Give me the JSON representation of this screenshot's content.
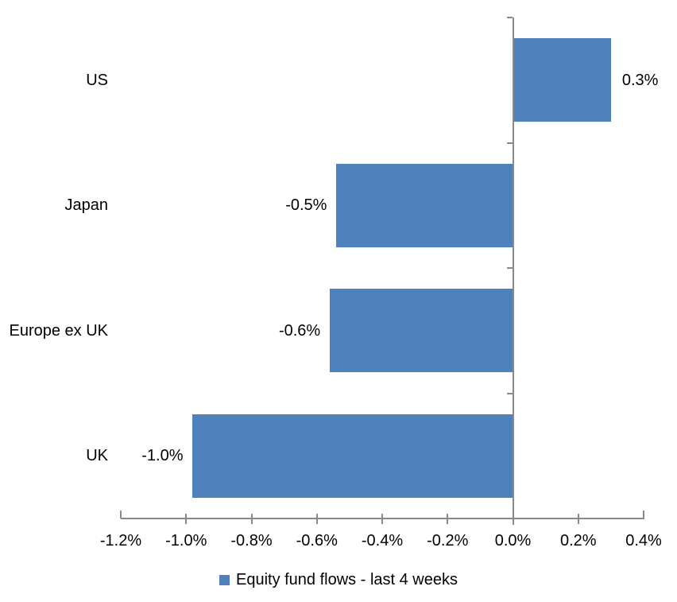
{
  "chart_data": {
    "type": "bar",
    "orientation": "horizontal",
    "title": "",
    "categories": [
      "US",
      "Japan",
      "Europe ex UK",
      "UK"
    ],
    "series": [
      {
        "name": "Equity fund flows - last 4 weeks",
        "values": [
          0.3,
          -0.5,
          -0.6,
          -1.0
        ],
        "plot_values_pct": [
          0.3,
          -0.54,
          -0.56,
          -0.98
        ],
        "data_labels": [
          "0.3%",
          "-0.5%",
          "-0.6%",
          "-1.0%"
        ]
      }
    ],
    "xlabel": "",
    "ylabel": "",
    "x_axis": {
      "min": -1.2,
      "max": 0.4,
      "tick_step": 0.2,
      "tick_labels": [
        "-1.2%",
        "-1.0%",
        "-0.8%",
        "-0.6%",
        "-0.4%",
        "-0.2%",
        "0.0%",
        "0.2%",
        "0.4%"
      ]
    },
    "grid": false,
    "legend_position": "bottom",
    "colors": {
      "bar": "#4F81BD",
      "axis": "#8A8A8A",
      "text": "#000000",
      "background": "#FFFFFF"
    }
  },
  "legend": {
    "label": "Equity fund flows - last 4 weeks"
  }
}
